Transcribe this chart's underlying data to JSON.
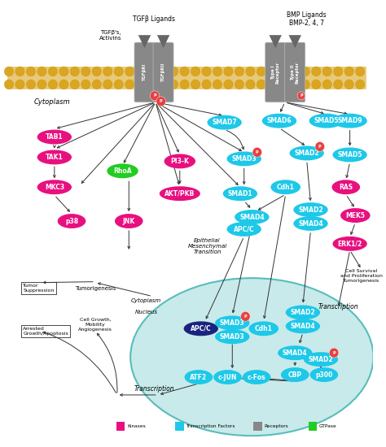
{
  "background_color": "#ffffff",
  "membrane_color": "#DAA520",
  "kinase_color": "#e8107f",
  "tf_color": "#1ec8e8",
  "receptor_color": "#888888",
  "gtpase_color": "#22cc22",
  "phospho_color": "#e84040",
  "dark_blue": "#1a237e",
  "nucleus_color": "#c8eaea",
  "nucleus_border": "#5abcbc",
  "legend": [
    {
      "label": "Kinases",
      "color": "#e8107f"
    },
    {
      "label": "Transcription Factors",
      "color": "#1ec8e8"
    },
    {
      "label": "Receptors",
      "color": "#888888"
    },
    {
      "label": "GTPase",
      "color": "#22cc22"
    }
  ]
}
